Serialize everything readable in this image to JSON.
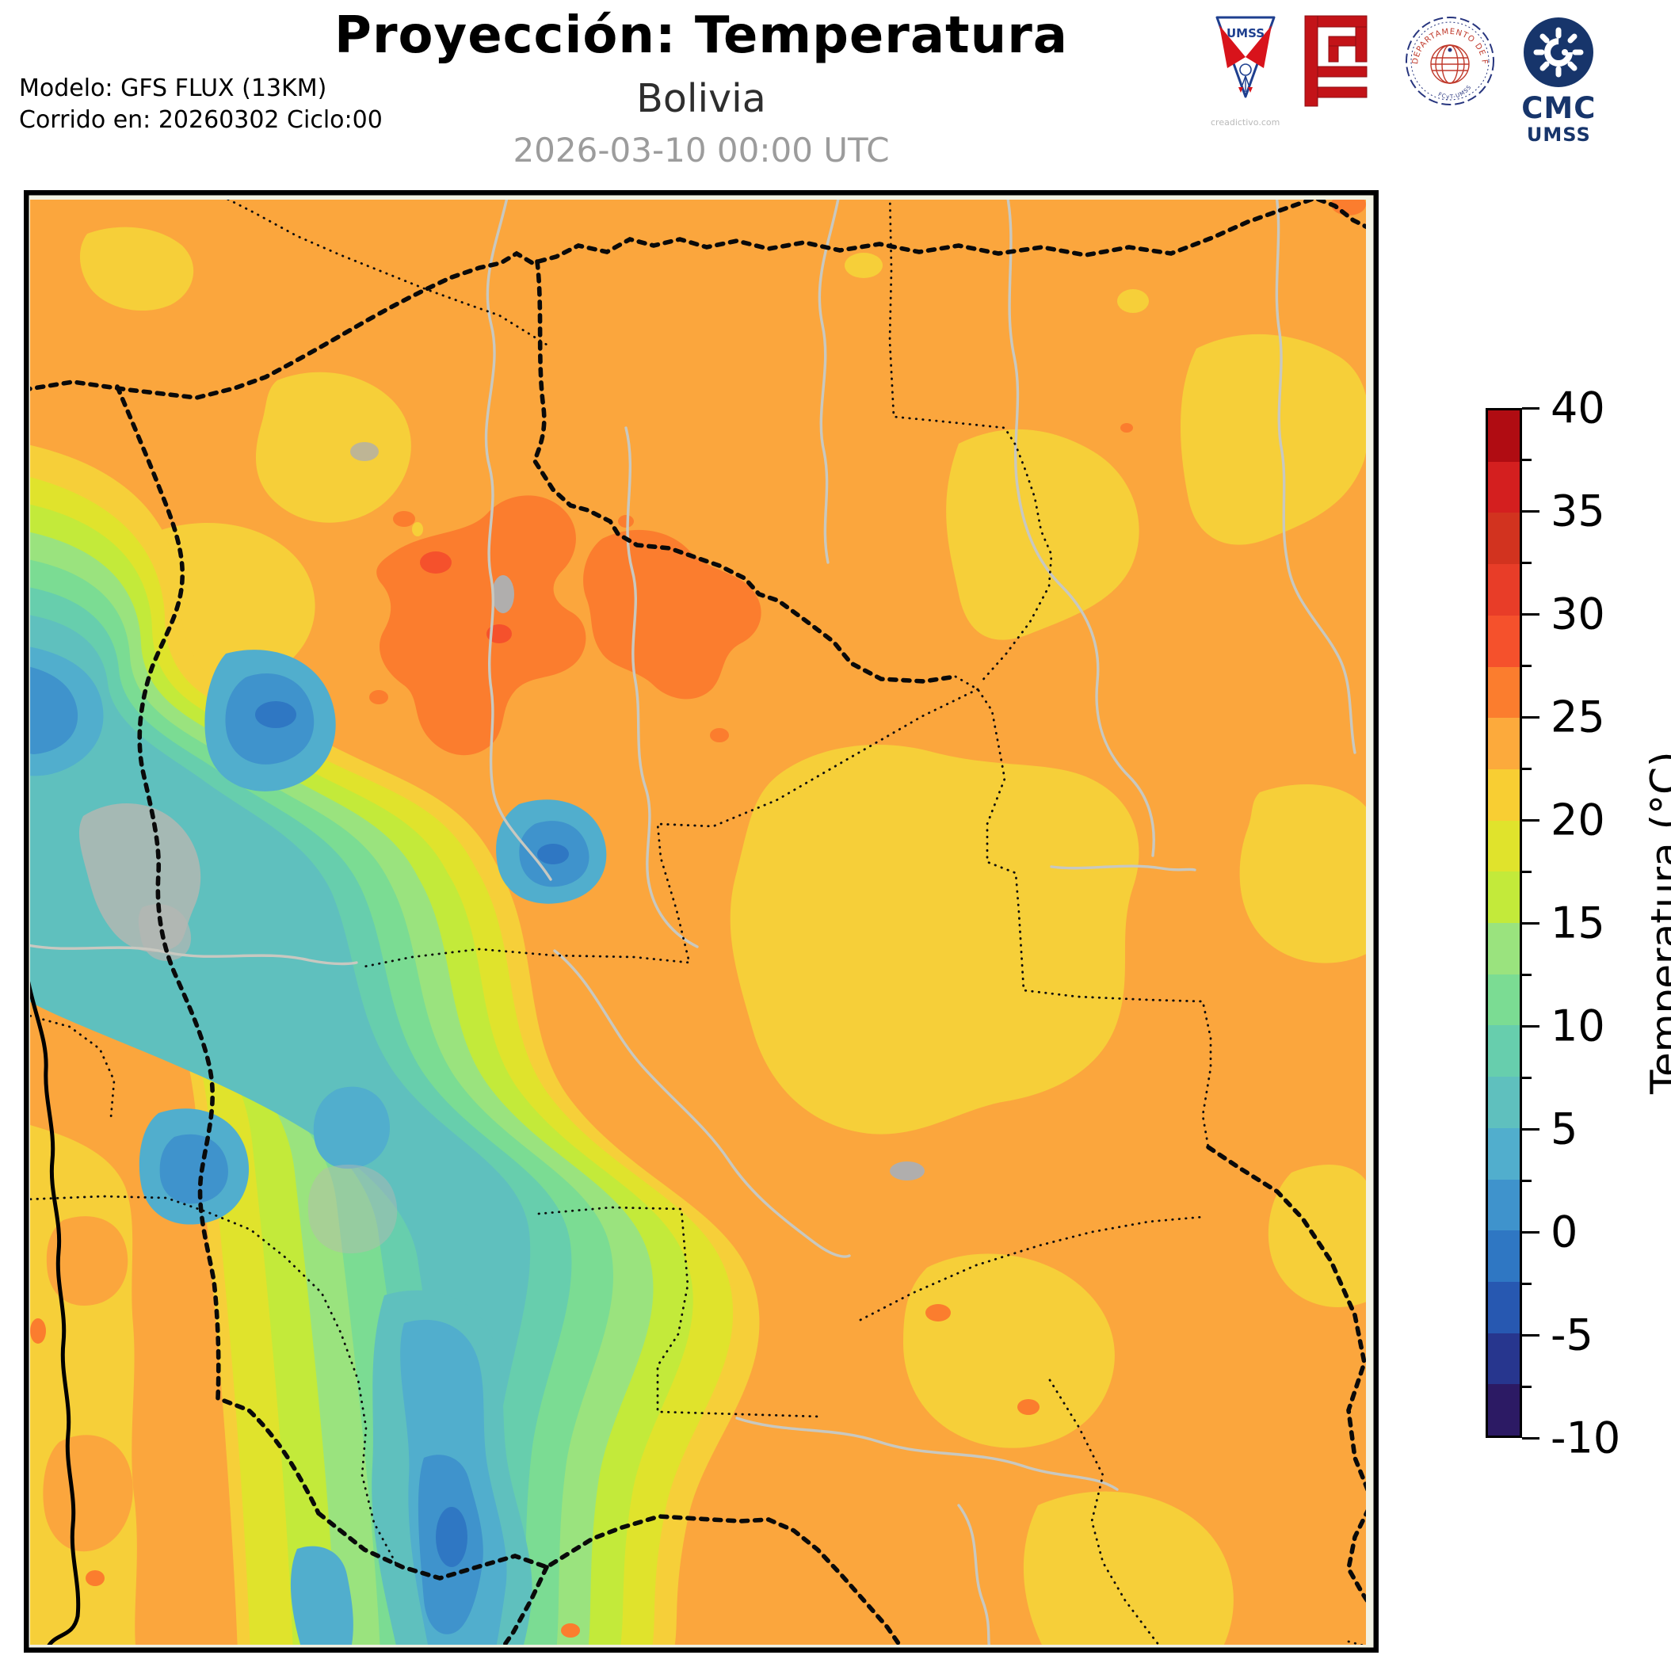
{
  "header": {
    "title": "Proyección: Temperatura",
    "subtitle": "Bolivia",
    "valid_time": "2026-03-10 00:00 UTC",
    "model_line1": "Modelo: GFS FLUX (13KM)",
    "model_line2": "Corrido en: 20260302 Ciclo:00"
  },
  "logos": {
    "umss": {
      "label": "UMSS",
      "watermark": "creadictivo.com"
    },
    "fisica": {
      "ring_text": "DEPARTAMENTO DE FÍSICA",
      "bottom_text": "FCyT-UMSS"
    },
    "cmc": {
      "title": "CMC",
      "subtitle": "UMSS"
    }
  },
  "colorbar": {
    "label": "Temperatura (°C)",
    "unit": "°C",
    "min": -10,
    "max": 40,
    "segment_step": 2.5,
    "major_tick_step": 5,
    "major_ticks": [
      "40",
      "35",
      "30",
      "25",
      "20",
      "15",
      "10",
      "5",
      "0",
      "-5",
      "-10"
    ],
    "segments_top_to_bottom": [
      "#b00c12",
      "#d41f1f",
      "#d2331f",
      "#e83d28",
      "#f5512c",
      "#fb7d2e",
      "#fcaa3c",
      "#f8ce33",
      "#e0e32c",
      "#c3ea3a",
      "#9ae37e",
      "#7bdc93",
      "#67cead",
      "#5fc0be",
      "#51aecd",
      "#3f93cc",
      "#2f77c3",
      "#2758b1",
      "#27368e",
      "#2c1a64"
    ]
  },
  "map_reading": {
    "eastern_lowlands_c": "22.5–25",
    "central_yellow_zone_c": "20–22.5",
    "north_warm_patch_c": "25–27.5",
    "andes_west_c": "-2.5–15",
    "pacific_coast_strip_c": "20–25"
  }
}
